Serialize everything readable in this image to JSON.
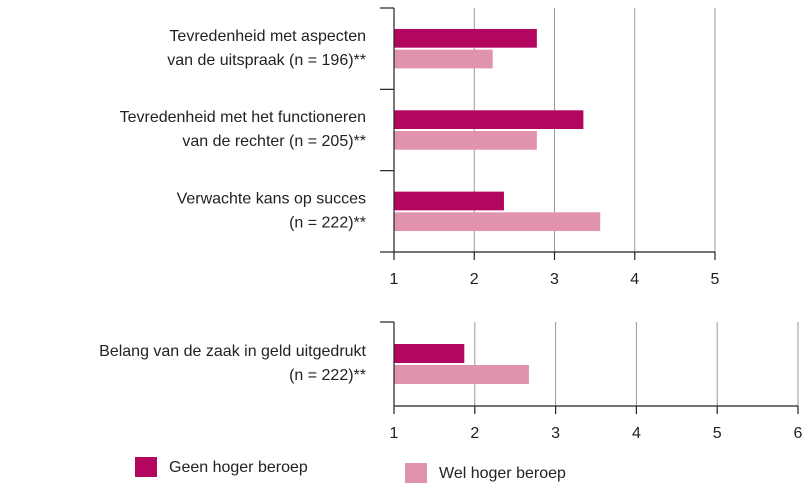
{
  "chart_data": [
    {
      "type": "bar",
      "orientation": "horizontal",
      "categories": [
        [
          "Tevredenheid met aspecten",
          "van de uitspraak (n = 196)**"
        ],
        [
          "Tevredenheid met het functioneren",
          "van de rechter (n = 205)**"
        ],
        [
          "Verwachte kans op succes",
          "(n = 222)**"
        ]
      ],
      "series": [
        {
          "name": "Geen hoger beroep",
          "color": "#b3065e",
          "values": [
            2.78,
            3.36,
            2.37
          ]
        },
        {
          "name": "Wel hoger beroep",
          "color": "#e192ad",
          "values": [
            2.23,
            2.78,
            3.57
          ]
        }
      ],
      "xlim": [
        1,
        5
      ],
      "xticks": [
        1,
        2,
        3,
        4,
        5
      ],
      "grid": true
    },
    {
      "type": "bar",
      "orientation": "horizontal",
      "categories": [
        [
          "Belang van de zaak in geld uitgedrukt",
          "(n = 222)**"
        ]
      ],
      "series": [
        {
          "color": "#b3065e",
          "values": [
            1.87
          ]
        },
        {
          "color": "#e192ad",
          "values": [
            2.67
          ]
        }
      ],
      "xlim": [
        1,
        6
      ],
      "xticks": [
        1,
        2,
        3,
        4,
        5,
        6
      ],
      "grid": true
    }
  ]
}
